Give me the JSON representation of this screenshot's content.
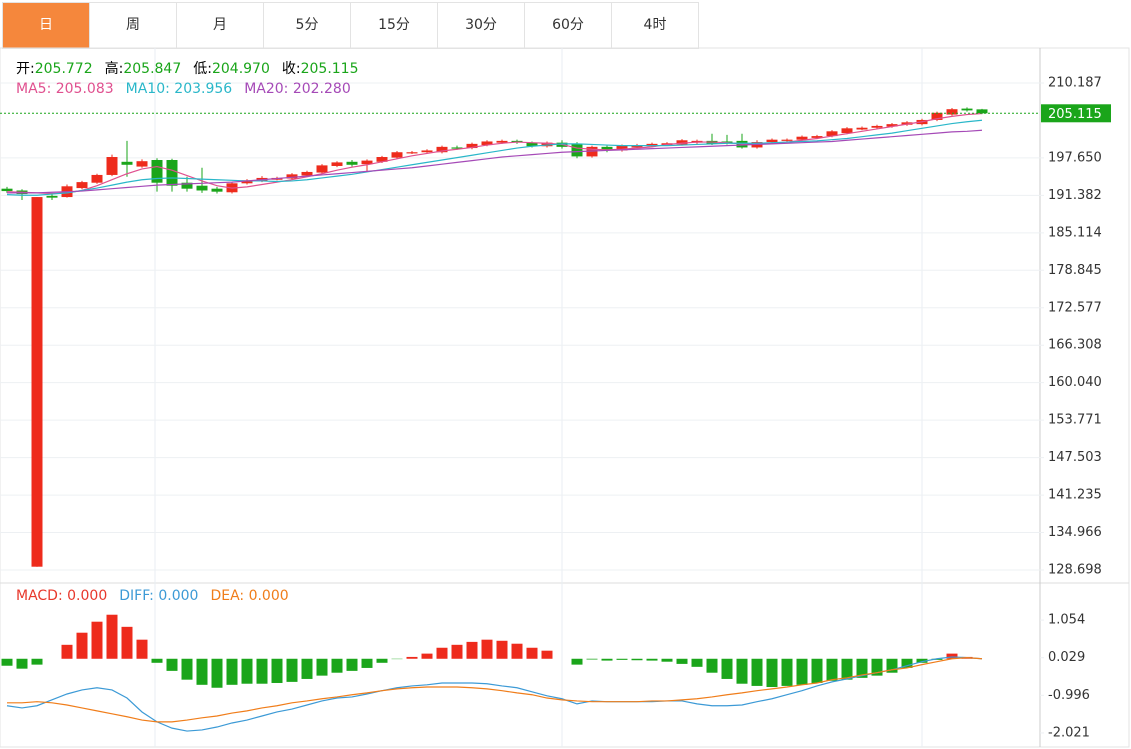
{
  "tabs": {
    "items": [
      "日",
      "周",
      "月",
      "5分",
      "15分",
      "30分",
      "60分",
      "4时"
    ],
    "active": 0,
    "active_color": "#f5873c"
  },
  "quote": [
    {
      "label": "开:",
      "value": "205.772"
    },
    {
      "label": "高:",
      "value": "205.847"
    },
    {
      "label": "低:",
      "value": "204.970"
    },
    {
      "label": "收:",
      "value": "205.115"
    }
  ],
  "quote_color": "#1aa51a",
  "chart_data": [
    {
      "type": "candlestick",
      "ylim": [
        126.69,
        216.04
      ],
      "yticks": [
        210.187,
        {
          "value": 197.65,
          "label": "197.650"
        },
        191.382,
        185.114,
        178.845,
        172.577,
        166.308,
        {
          "value": 160.04,
          "label": "160.040"
        },
        153.771,
        147.503,
        141.235,
        134.966,
        128.698
      ],
      "grid": true,
      "up_color": "#ee2b1c",
      "down_color": "#1aa51a",
      "last_price": 205.115,
      "last_price_color": "#1aa51a",
      "open": [
        192.5,
        192.2,
        129.25,
        191.3,
        191.1,
        192.6,
        193.5,
        194.8,
        197.0,
        196.2,
        197.3,
        197.3,
        193.5,
        193.0,
        192.5,
        191.9,
        193.4,
        193.8,
        194.0,
        194.2,
        194.7,
        195.2,
        196.3,
        197.0,
        196.6,
        197.0,
        197.7,
        198.4,
        198.6,
        198.6,
        199.4,
        199.3,
        199.8,
        200.2,
        200.5,
        200.2,
        199.6,
        200.2,
        200.0,
        197.9,
        199.5,
        198.9,
        199.4,
        199.6,
        199.8,
        199.9,
        200.2,
        200.5,
        200.4,
        200.5,
        199.4,
        200.3,
        200.5,
        200.7,
        201.0,
        201.3,
        201.8,
        202.4,
        202.7,
        202.9,
        203.2,
        203.3,
        204.0,
        204.9,
        205.9,
        205.772
      ],
      "high": [
        192.8,
        192.4,
        191.1,
        191.6,
        193.2,
        193.8,
        195.0,
        198.2,
        200.5,
        197.4,
        197.6,
        197.5,
        194.5,
        196.0,
        192.8,
        193.6,
        194.1,
        194.6,
        194.5,
        195.1,
        195.5,
        196.6,
        197.1,
        197.3,
        197.4,
        198.0,
        198.8,
        198.8,
        199.1,
        199.7,
        199.7,
        200.2,
        200.6,
        200.7,
        200.7,
        200.4,
        200.4,
        200.6,
        200.3,
        199.7,
        199.7,
        199.9,
        200.0,
        200.2,
        200.3,
        200.8,
        200.7,
        201.7,
        201.5,
        201.7,
        200.6,
        200.9,
        200.9,
        201.4,
        201.5,
        202.3,
        202.8,
        202.9,
        203.2,
        203.5,
        203.8,
        204.2,
        205.4,
        206.0,
        206.1,
        205.847
      ],
      "low": [
        191.8,
        190.6,
        129.25,
        190.6,
        191.0,
        192.4,
        193.3,
        194.6,
        194.5,
        196.0,
        192.0,
        192.0,
        192.0,
        191.8,
        191.7,
        191.7,
        193.2,
        193.6,
        193.9,
        194.0,
        194.5,
        195.0,
        196.1,
        196.2,
        195.3,
        196.8,
        197.5,
        198.3,
        198.5,
        198.4,
        199.0,
        199.1,
        199.6,
        200.0,
        200.0,
        199.4,
        199.4,
        199.2,
        197.6,
        197.7,
        198.6,
        198.7,
        199.2,
        199.4,
        199.7,
        199.7,
        200.0,
        199.8,
        199.9,
        199.2,
        199.2,
        200.2,
        200.4,
        200.5,
        200.8,
        201.1,
        201.6,
        202.3,
        202.5,
        202.7,
        203.0,
        203.1,
        203.8,
        204.7,
        205.4,
        204.97
      ],
      "close": [
        192.1,
        191.6,
        191.1,
        191.0,
        192.9,
        193.6,
        194.8,
        197.8,
        196.5,
        197.1,
        193.5,
        193.0,
        192.5,
        192.2,
        192.0,
        193.4,
        193.9,
        194.3,
        194.3,
        194.9,
        195.3,
        196.4,
        196.9,
        196.5,
        197.2,
        197.8,
        198.6,
        198.6,
        198.9,
        199.5,
        199.2,
        200.0,
        200.4,
        200.5,
        200.3,
        199.6,
        200.2,
        199.5,
        197.9,
        199.5,
        198.9,
        199.7,
        199.8,
        200.0,
        200.1,
        200.6,
        200.5,
        200.0,
        200.1,
        199.4,
        200.3,
        200.7,
        200.7,
        201.2,
        201.3,
        202.1,
        202.6,
        202.7,
        203.0,
        203.3,
        203.6,
        204.0,
        205.2,
        205.8,
        205.6,
        205.115
      ],
      "series": [
        {
          "name": "MA5:",
          "value_label": "205.083",
          "color": "#e0508f",
          "values": [
            192.0,
            191.9,
            191.8,
            191.7,
            191.8,
            192.2,
            193.0,
            194.0,
            195.0,
            195.8,
            196.2,
            195.6,
            194.7,
            193.8,
            193.0,
            192.6,
            192.8,
            193.2,
            193.6,
            194.0,
            194.5,
            195.0,
            195.6,
            196.1,
            196.5,
            197.0,
            197.5,
            198.0,
            198.4,
            198.8,
            199.1,
            199.4,
            199.8,
            200.1,
            200.3,
            200.2,
            200.1,
            199.9,
            199.3,
            199.1,
            199.0,
            199.1,
            199.3,
            199.5,
            199.9,
            200.1,
            200.3,
            200.3,
            200.2,
            200.0,
            200.0,
            200.1,
            200.3,
            200.6,
            200.9,
            201.3,
            201.7,
            202.1,
            202.5,
            202.9,
            203.3,
            203.7,
            204.2,
            204.6,
            204.9,
            205.083
          ]
        },
        {
          "name": "MA10:",
          "value_label": "203.956",
          "color": "#2ab7c9",
          "values": [
            191.5,
            191.4,
            191.4,
            191.6,
            191.8,
            192.2,
            192.6,
            193.1,
            193.6,
            194.0,
            194.2,
            194.3,
            194.2,
            194.1,
            194.0,
            193.9,
            193.8,
            193.8,
            193.7,
            193.8,
            194.0,
            194.3,
            194.6,
            194.9,
            195.3,
            195.7,
            196.1,
            196.5,
            196.9,
            197.3,
            197.7,
            198.1,
            198.5,
            198.9,
            199.3,
            199.6,
            199.8,
            200.0,
            200.0,
            199.9,
            199.8,
            199.7,
            199.7,
            199.7,
            199.7,
            199.8,
            199.9,
            200.0,
            200.1,
            200.1,
            200.1,
            200.2,
            200.3,
            200.4,
            200.5,
            200.7,
            200.9,
            201.2,
            201.5,
            201.8,
            202.2,
            202.6,
            203.0,
            203.4,
            203.7,
            203.956
          ]
        },
        {
          "name": "MA20:",
          "value_label": "202.280",
          "color": "#a54ab7",
          "values": [
            191.8,
            191.8,
            191.8,
            191.9,
            192.0,
            192.1,
            192.3,
            192.5,
            192.7,
            192.9,
            193.1,
            193.2,
            193.3,
            193.4,
            193.5,
            193.6,
            193.8,
            194.0,
            194.2,
            194.4,
            194.6,
            194.8,
            195.0,
            195.2,
            195.4,
            195.6,
            195.8,
            196.0,
            196.3,
            196.6,
            196.9,
            197.2,
            197.5,
            197.8,
            198.0,
            198.2,
            198.4,
            198.6,
            198.7,
            198.8,
            198.9,
            199.0,
            199.1,
            199.2,
            199.3,
            199.4,
            199.5,
            199.6,
            199.7,
            199.8,
            199.9,
            200.0,
            200.1,
            200.2,
            200.3,
            200.4,
            200.6,
            200.8,
            201.0,
            201.2,
            201.4,
            201.6,
            201.8,
            202.0,
            202.1,
            202.28
          ]
        }
      ]
    },
    {
      "type": "macd",
      "ylim": [
        -2.35,
        2.01
      ],
      "yticks": [
        1.054,
        0.029,
        -0.996,
        -2.021
      ],
      "up_color": "#ee2b1c",
      "down_color": "#1aa51a",
      "histogram": {
        "name": "MACD:",
        "value_label": "0.000",
        "color": "#e8382c",
        "values": [
          -0.19,
          -0.27,
          -0.16,
          0.0,
          0.38,
          0.71,
          1.01,
          1.2,
          0.87,
          0.52,
          -0.11,
          -0.33,
          -0.57,
          -0.71,
          -0.79,
          -0.71,
          -0.68,
          -0.68,
          -0.66,
          -0.63,
          -0.55,
          -0.46,
          -0.38,
          -0.33,
          -0.25,
          -0.11,
          -0.01,
          0.05,
          0.14,
          0.3,
          0.38,
          0.46,
          0.52,
          0.49,
          0.41,
          0.3,
          0.22,
          0.0,
          -0.16,
          -0.02,
          -0.05,
          -0.03,
          -0.04,
          -0.05,
          -0.08,
          -0.14,
          -0.22,
          -0.38,
          -0.55,
          -0.68,
          -0.74,
          -0.77,
          -0.74,
          -0.71,
          -0.66,
          -0.6,
          -0.57,
          -0.52,
          -0.46,
          -0.38,
          -0.25,
          -0.11,
          -0.03,
          0.14,
          0.05,
          0.0
        ]
      },
      "series": [
        {
          "name": "DIFF:",
          "value_label": "0.000",
          "color": "#3c9ad6",
          "values": [
            -1.28,
            -1.34,
            -1.28,
            -1.12,
            -0.96,
            -0.85,
            -0.79,
            -0.85,
            -1.07,
            -1.45,
            -1.72,
            -1.89,
            -1.97,
            -1.94,
            -1.86,
            -1.75,
            -1.67,
            -1.56,
            -1.45,
            -1.37,
            -1.26,
            -1.15,
            -1.07,
            -1.04,
            -0.96,
            -0.87,
            -0.79,
            -0.74,
            -0.71,
            -0.66,
            -0.66,
            -0.66,
            -0.68,
            -0.74,
            -0.79,
            -0.9,
            -1.01,
            -1.09,
            -1.23,
            -1.15,
            -1.17,
            -1.17,
            -1.17,
            -1.17,
            -1.15,
            -1.15,
            -1.23,
            -1.28,
            -1.28,
            -1.26,
            -1.17,
            -1.09,
            -0.98,
            -0.87,
            -0.74,
            -0.63,
            -0.55,
            -0.46,
            -0.38,
            -0.3,
            -0.19,
            -0.08,
            0.0,
            0.05,
            0.03,
            0.0
          ]
        },
        {
          "name": "DEA:",
          "value_label": "0.000",
          "color": "#f07d1a",
          "values": [
            -1.2,
            -1.2,
            -1.17,
            -1.2,
            -1.26,
            -1.34,
            -1.42,
            -1.5,
            -1.58,
            -1.67,
            -1.72,
            -1.72,
            -1.67,
            -1.61,
            -1.56,
            -1.48,
            -1.42,
            -1.34,
            -1.28,
            -1.2,
            -1.15,
            -1.09,
            -1.04,
            -0.98,
            -0.93,
            -0.87,
            -0.82,
            -0.79,
            -0.77,
            -0.77,
            -0.77,
            -0.79,
            -0.82,
            -0.87,
            -0.93,
            -0.98,
            -1.07,
            -1.12,
            -1.15,
            -1.17,
            -1.17,
            -1.17,
            -1.17,
            -1.15,
            -1.15,
            -1.12,
            -1.09,
            -1.04,
            -0.98,
            -0.93,
            -0.87,
            -0.82,
            -0.77,
            -0.71,
            -0.66,
            -0.57,
            -0.52,
            -0.44,
            -0.38,
            -0.3,
            -0.25,
            -0.16,
            -0.08,
            0.0,
            0.03,
            0.0
          ]
        }
      ]
    }
  ]
}
